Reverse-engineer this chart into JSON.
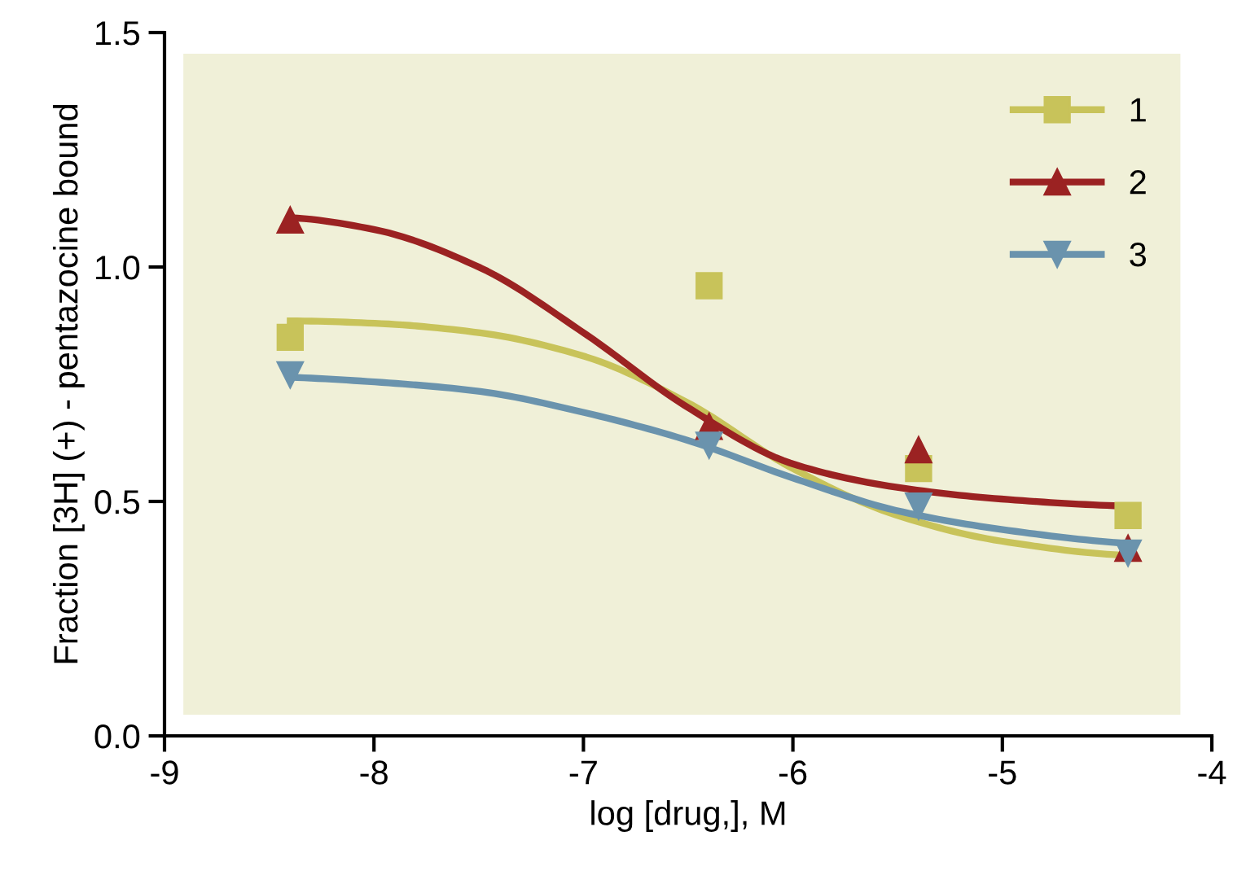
{
  "chart_data": {
    "type": "scatter",
    "xlabel": "log [drug,], M",
    "ylabel": "Fraction [3H] (+) - pentazocine bound",
    "xlim": [
      -9,
      -4
    ],
    "xticks": [
      -9,
      -8,
      -7,
      -6,
      -5,
      -4
    ],
    "ylim": [
      0,
      1.5
    ],
    "yticks": [
      {
        "value": 0,
        "label": "0.0"
      },
      0.5,
      {
        "value": 1,
        "label": "1.0"
      },
      1.5
    ],
    "grid": false,
    "legend": "top right",
    "series": [
      {
        "name": "1",
        "color": "#c8c35a",
        "marker": "square",
        "x": [
          -8.4,
          -6.4,
          -5.4,
          -4.4
        ],
        "values": [
          0.85,
          0.96,
          0.57,
          0.47
        ]
      },
      {
        "name": "2",
        "color": "#9b2222",
        "marker": "triangle",
        "x": [
          -8.4,
          -6.4,
          -5.4,
          -4.4
        ],
        "values": [
          1.1,
          0.66,
          0.61,
          0.4
        ]
      },
      {
        "name": "3",
        "color": "#6a93ad",
        "marker": "triangle_down",
        "x": [
          -8.4,
          -6.4,
          -5.4,
          -4.4
        ],
        "values": [
          0.77,
          0.62,
          0.49,
          0.39
        ]
      },
      {
        "type": "line",
        "color": "#c8c35a",
        "x": [
          -8.4,
          -8,
          -7.5,
          -7,
          -6.5,
          -6,
          -5.5,
          -5,
          -4.4
        ],
        "values": [
          0.885,
          0.88,
          0.86,
          0.81,
          0.71,
          0.57,
          0.47,
          0.415,
          0.385
        ]
      },
      {
        "type": "line",
        "color": "#9b2222",
        "x": [
          -8.4,
          -8,
          -7.5,
          -7,
          -6.5,
          -6,
          -5.5,
          -5,
          -4.4
        ],
        "values": [
          1.105,
          1.08,
          1.0,
          0.86,
          0.7,
          0.58,
          0.53,
          0.505,
          0.49
        ]
      },
      {
        "type": "line",
        "color": "#6a93ad",
        "x": [
          -8.4,
          -8,
          -7.5,
          -7,
          -6.5,
          -6,
          -5.5,
          -5,
          -4.4
        ],
        "values": [
          0.765,
          0.755,
          0.735,
          0.69,
          0.63,
          0.55,
          0.48,
          0.44,
          0.41
        ]
      }
    ]
  }
}
